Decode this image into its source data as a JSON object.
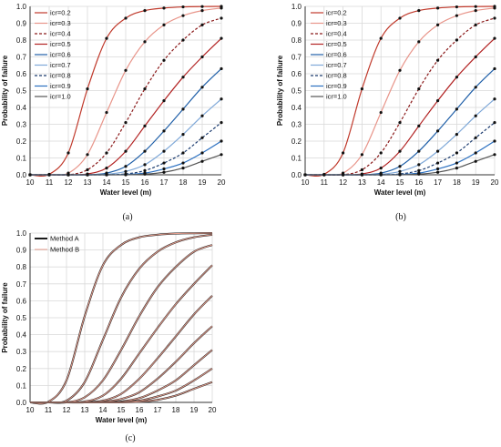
{
  "chart_data": [
    {
      "type": "line",
      "panel_label": "(a)",
      "xlabel": "Water level (m)",
      "ylabel": "Probability of failure",
      "xlim": [
        10,
        20
      ],
      "ylim": [
        0,
        1
      ],
      "x_ticks": [
        "10",
        "11",
        "12",
        "13",
        "14",
        "15",
        "16",
        "17",
        "18",
        "19",
        "20"
      ],
      "y_ticks": [
        "0.0",
        "0.1",
        "0.2",
        "0.3",
        "0.4",
        "0.5",
        "0.6",
        "0.7",
        "0.8",
        "0.9",
        "1.0"
      ],
      "grid": true,
      "legend_position": "top-left",
      "x": [
        10,
        11,
        12,
        13,
        14,
        15,
        16,
        17,
        18,
        19,
        20
      ],
      "series": [
        {
          "name": "icr=0.2",
          "color": "#c0392b",
          "dash": "solid",
          "values": [
            0.0,
            0.003,
            0.13,
            0.51,
            0.81,
            0.93,
            0.975,
            0.99,
            0.997,
            0.999,
            1.0
          ]
        },
        {
          "name": "icr=0.3",
          "color": "#e8958a",
          "dash": "solid",
          "values": [
            0.0,
            0.0,
            0.01,
            0.12,
            0.37,
            0.62,
            0.79,
            0.89,
            0.945,
            0.975,
            0.99
          ]
        },
        {
          "name": "icr=0.4",
          "color": "#8b1a1a",
          "dash": "dashed",
          "values": [
            0.0,
            0.0,
            0.0,
            0.03,
            0.13,
            0.31,
            0.51,
            0.68,
            0.8,
            0.89,
            0.93
          ]
        },
        {
          "name": "icr=0.5",
          "color": "#b22222",
          "dash": "solid",
          "values": [
            0.0,
            0.0,
            0.0,
            0.005,
            0.04,
            0.14,
            0.29,
            0.44,
            0.58,
            0.7,
            0.81
          ]
        },
        {
          "name": "icr=0.6",
          "color": "#1f5fa8",
          "dash": "solid",
          "values": [
            0.0,
            0.0,
            0.0,
            0.0,
            0.01,
            0.05,
            0.14,
            0.26,
            0.39,
            0.52,
            0.63
          ]
        },
        {
          "name": "icr=0.7",
          "color": "#7fa8d8",
          "dash": "solid",
          "values": [
            0.0,
            0.0,
            0.0,
            0.0,
            0.003,
            0.02,
            0.06,
            0.14,
            0.24,
            0.35,
            0.45
          ]
        },
        {
          "name": "icr=0.8",
          "color": "#1a3a6e",
          "dash": "dashed",
          "values": [
            0.0,
            0.0,
            0.0,
            0.0,
            0.0,
            0.005,
            0.025,
            0.07,
            0.13,
            0.22,
            0.31
          ]
        },
        {
          "name": "icr=0.9",
          "color": "#2a6fc0",
          "dash": "solid",
          "values": [
            0.0,
            0.0,
            0.0,
            0.0,
            0.0,
            0.002,
            0.01,
            0.035,
            0.07,
            0.13,
            0.2
          ]
        },
        {
          "name": "icr=1.0",
          "color": "#555555",
          "dash": "solid",
          "values": [
            0.0,
            0.0,
            0.0,
            0.0,
            0.0,
            0.0,
            0.004,
            0.015,
            0.04,
            0.08,
            0.12
          ]
        }
      ]
    },
    {
      "type": "line",
      "panel_label": "(b)",
      "xlabel": "Water level (m)",
      "ylabel": "Probability of failure",
      "xlim": [
        10,
        20
      ],
      "ylim": [
        0,
        1
      ],
      "x_ticks": [
        "10",
        "11",
        "12",
        "13",
        "14",
        "15",
        "16",
        "17",
        "18",
        "19",
        "20"
      ],
      "y_ticks": [
        "0.0",
        "0.1",
        "0.2",
        "0.3",
        "0.4",
        "0.5",
        "0.6",
        "0.7",
        "0.8",
        "0.9",
        "1.0"
      ],
      "grid": true,
      "legend_position": "top-left",
      "x": [
        10,
        11,
        12,
        13,
        14,
        15,
        16,
        17,
        18,
        19,
        20
      ],
      "series": [
        {
          "name": "icr=0.2",
          "color": "#c0392b",
          "dash": "solid",
          "values": [
            0.0,
            0.003,
            0.13,
            0.51,
            0.81,
            0.93,
            0.975,
            0.99,
            0.997,
            0.999,
            1.0
          ]
        },
        {
          "name": "icr=0.3",
          "color": "#e8958a",
          "dash": "solid",
          "values": [
            0.0,
            0.0,
            0.01,
            0.12,
            0.37,
            0.62,
            0.79,
            0.89,
            0.945,
            0.975,
            0.99
          ]
        },
        {
          "name": "icr=0.4",
          "color": "#8b1a1a",
          "dash": "dashed",
          "values": [
            0.0,
            0.0,
            0.0,
            0.03,
            0.13,
            0.31,
            0.51,
            0.68,
            0.8,
            0.89,
            0.93
          ]
        },
        {
          "name": "icr=0.5",
          "color": "#b22222",
          "dash": "solid",
          "values": [
            0.0,
            0.0,
            0.0,
            0.005,
            0.04,
            0.14,
            0.29,
            0.44,
            0.58,
            0.7,
            0.81
          ]
        },
        {
          "name": "icr=0.6",
          "color": "#1f5fa8",
          "dash": "solid",
          "values": [
            0.0,
            0.0,
            0.0,
            0.0,
            0.01,
            0.05,
            0.14,
            0.26,
            0.39,
            0.52,
            0.63
          ]
        },
        {
          "name": "icr=0.7",
          "color": "#7fa8d8",
          "dash": "solid",
          "values": [
            0.0,
            0.0,
            0.0,
            0.0,
            0.003,
            0.02,
            0.06,
            0.14,
            0.24,
            0.35,
            0.45
          ]
        },
        {
          "name": "icr=0.8",
          "color": "#1a3a6e",
          "dash": "dashed",
          "values": [
            0.0,
            0.0,
            0.0,
            0.0,
            0.0,
            0.005,
            0.025,
            0.07,
            0.13,
            0.22,
            0.31
          ]
        },
        {
          "name": "icr=0.9",
          "color": "#2a6fc0",
          "dash": "solid",
          "values": [
            0.0,
            0.0,
            0.0,
            0.0,
            0.0,
            0.002,
            0.01,
            0.035,
            0.07,
            0.13,
            0.2
          ]
        },
        {
          "name": "icr=1.0",
          "color": "#555555",
          "dash": "solid",
          "values": [
            0.0,
            0.0,
            0.0,
            0.0,
            0.0,
            0.0,
            0.004,
            0.015,
            0.04,
            0.08,
            0.12
          ]
        }
      ]
    },
    {
      "type": "line",
      "panel_label": "(c)",
      "xlabel": "Water level (m)",
      "ylabel": "Probability of failure",
      "xlim": [
        10,
        20
      ],
      "ylim": [
        0,
        1
      ],
      "x_ticks": [
        "10",
        "11",
        "12",
        "13",
        "14",
        "15",
        "16",
        "17",
        "18",
        "19",
        "20"
      ],
      "y_ticks": [
        "0.0",
        "0.1",
        "0.2",
        "0.3",
        "0.4",
        "0.5",
        "0.6",
        "0.7",
        "0.8",
        "0.9",
        "1.0"
      ],
      "grid": true,
      "legend_position": "top-left",
      "legend": [
        {
          "name": "Method A",
          "color": "#1a1a1a",
          "width": 2
        },
        {
          "name": "Method B",
          "color": "#e8a090",
          "width": 1
        }
      ],
      "x": [
        10,
        11,
        12,
        13,
        14,
        15,
        16,
        17,
        18,
        19,
        20
      ],
      "series": [
        {
          "values": [
            0.0,
            0.003,
            0.13,
            0.51,
            0.81,
            0.93,
            0.975,
            0.99,
            0.997,
            0.999,
            1.0
          ]
        },
        {
          "values": [
            0.0,
            0.0,
            0.01,
            0.12,
            0.37,
            0.62,
            0.79,
            0.89,
            0.945,
            0.975,
            0.99
          ]
        },
        {
          "values": [
            0.0,
            0.0,
            0.0,
            0.03,
            0.13,
            0.31,
            0.51,
            0.68,
            0.8,
            0.89,
            0.93
          ]
        },
        {
          "values": [
            0.0,
            0.0,
            0.0,
            0.005,
            0.04,
            0.14,
            0.29,
            0.44,
            0.58,
            0.7,
            0.81
          ]
        },
        {
          "values": [
            0.0,
            0.0,
            0.0,
            0.0,
            0.01,
            0.05,
            0.14,
            0.26,
            0.39,
            0.52,
            0.63
          ]
        },
        {
          "values": [
            0.0,
            0.0,
            0.0,
            0.0,
            0.003,
            0.02,
            0.06,
            0.14,
            0.24,
            0.35,
            0.45
          ]
        },
        {
          "values": [
            0.0,
            0.0,
            0.0,
            0.0,
            0.0,
            0.005,
            0.025,
            0.07,
            0.13,
            0.22,
            0.31
          ]
        },
        {
          "values": [
            0.0,
            0.0,
            0.0,
            0.0,
            0.0,
            0.002,
            0.01,
            0.035,
            0.07,
            0.13,
            0.2
          ]
        },
        {
          "values": [
            0.0,
            0.0,
            0.0,
            0.0,
            0.0,
            0.0,
            0.004,
            0.015,
            0.04,
            0.08,
            0.12
          ]
        }
      ]
    }
  ]
}
